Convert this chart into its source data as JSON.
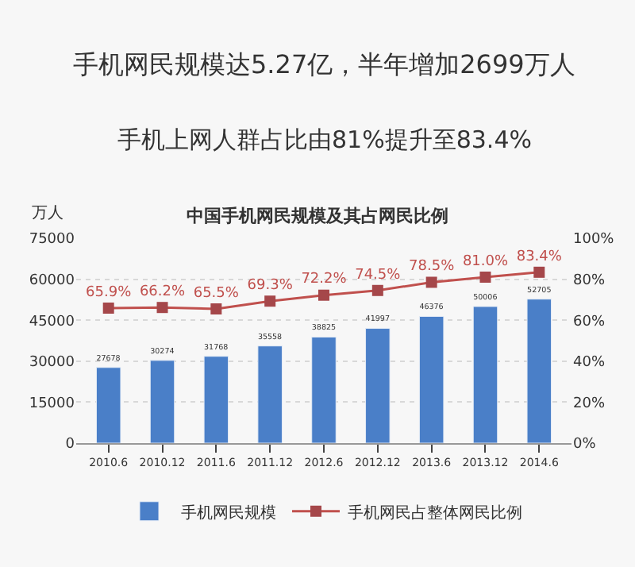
{
  "chart_data": {
    "type": "bar",
    "title": "中国手机网民规模及其占网民比例",
    "annotations": [
      "手机网民规模达5.27亿，半年增加2699万人",
      "手机上网人群占比由81%提升至83.4%"
    ],
    "ylabel": "万人",
    "categories": [
      "2010.6",
      "2010.12",
      "2011.6",
      "2011.12",
      "2012.6",
      "2012.12",
      "2013.6",
      "2013.12",
      "2014.6"
    ],
    "series": [
      {
        "name": "手机网民规模",
        "color": "#4a7fc8",
        "values": [
          27678,
          30274,
          31768,
          35558,
          38825,
          41997,
          46376,
          50006,
          52705
        ],
        "value_labels": [
          "27678",
          "30274",
          "31768",
          "35558",
          "38825",
          "41997",
          "46376",
          "50006",
          "52705"
        ]
      },
      {
        "name": "手机网民占整体网民比例",
        "type": "line",
        "axis": "y2",
        "color": "#c0504d",
        "marker": "square",
        "values": [
          65.9,
          66.2,
          65.5,
          69.3,
          72.2,
          74.5,
          78.5,
          81.0,
          83.4
        ],
        "value_labels": [
          "65.9%",
          "66.2%",
          "65.5%",
          "69.3%",
          "72.2%",
          "74.5%",
          "78.5%",
          "81.0%",
          "83.4%"
        ]
      }
    ],
    "ylim": [
      0,
      75000
    ],
    "yticks": [
      0,
      15000,
      30000,
      45000,
      60000,
      75000
    ],
    "y2lim": [
      0,
      100
    ],
    "y2ticks": [
      {
        "value": 0,
        "label": "0%"
      },
      {
        "value": 20,
        "label": "20%"
      },
      {
        "value": 40,
        "label": "40%"
      },
      {
        "value": 60,
        "label": "60%"
      },
      {
        "value": 80,
        "label": "80%"
      },
      {
        "value": 100,
        "label": "100%"
      }
    ],
    "grid": "y",
    "legend": "bottom"
  }
}
